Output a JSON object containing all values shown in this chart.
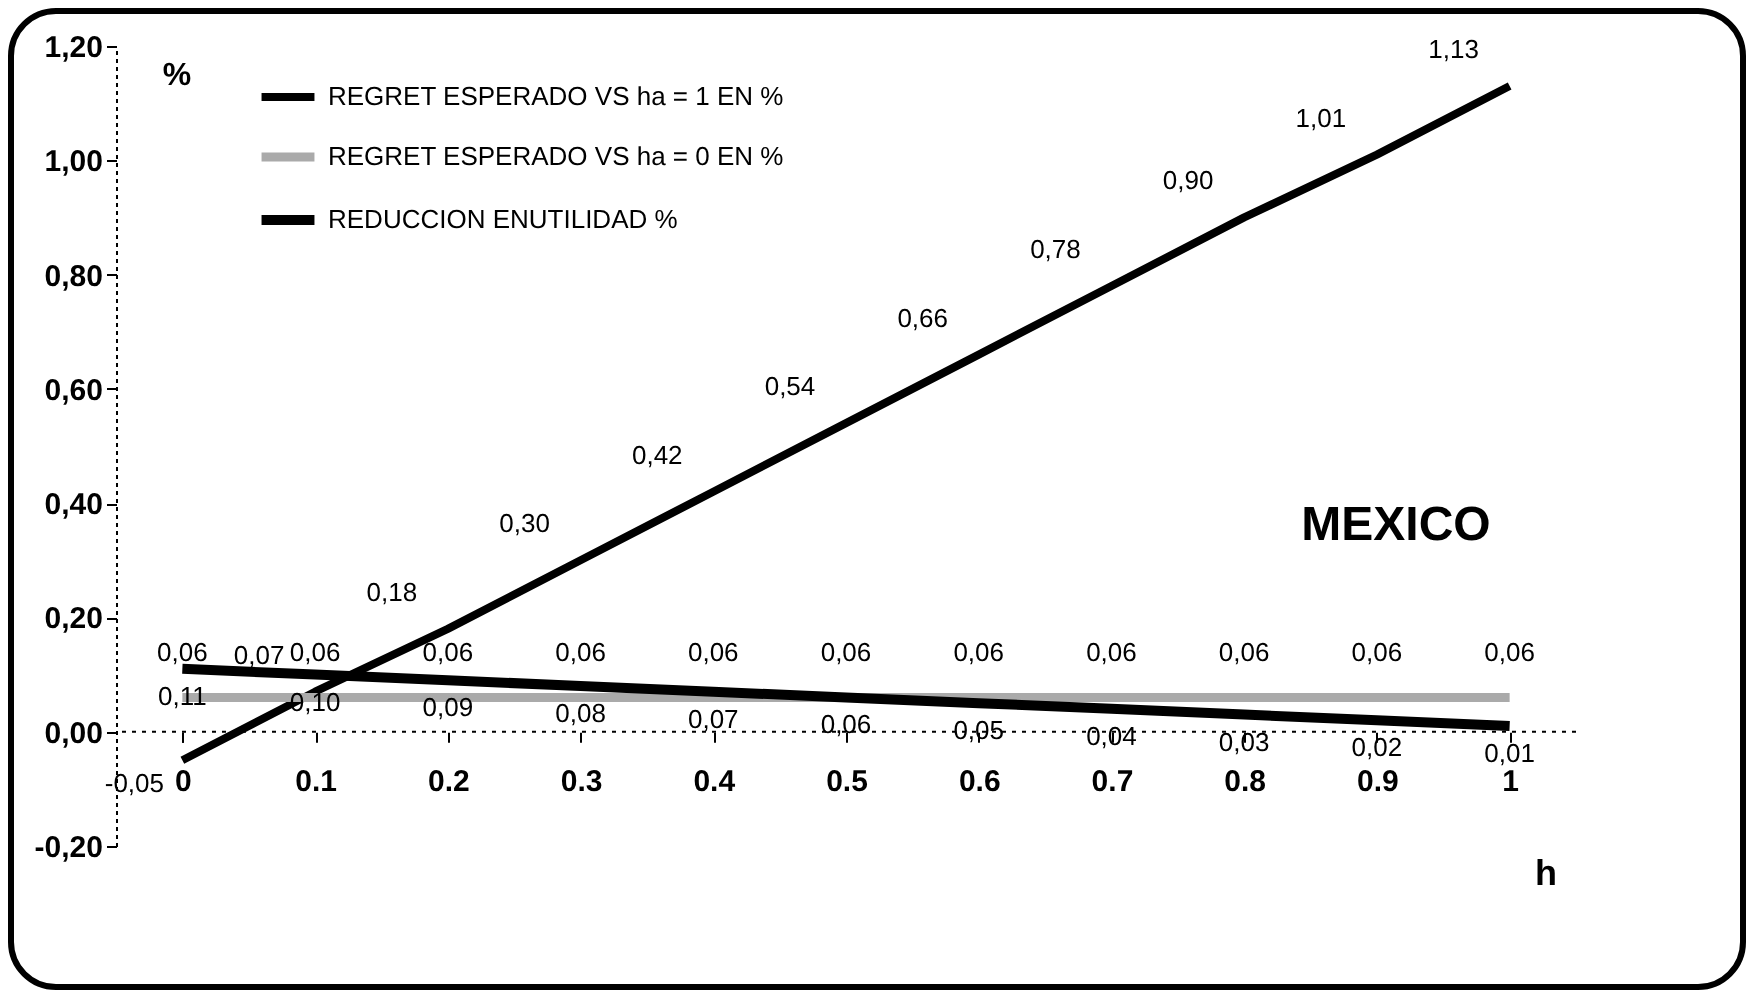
{
  "chart_data": {
    "type": "line",
    "categories": [
      "0",
      "0.1",
      "0.2",
      "0.3",
      "0.4",
      "0.5",
      "0.6",
      "0.7",
      "0.8",
      "0.9",
      "1"
    ],
    "series": [
      {
        "name": "REGRET ESPERADO VS  ha = 1 EN %",
        "color": "#000000",
        "values": [
          -0.05,
          0.07,
          0.18,
          0.3,
          0.42,
          0.54,
          0.66,
          0.78,
          0.9,
          1.01,
          1.13
        ],
        "value_labels": [
          "-0,05",
          "0,07",
          "0,18",
          "0,30",
          "0,42",
          "0,54",
          "0,66",
          "0,78",
          "0,90",
          "1,01",
          "1,13"
        ]
      },
      {
        "name": "REGRET ESPERADO VS  ha = 0 EN %",
        "color": "#aaaaaa",
        "values": [
          0.06,
          0.06,
          0.06,
          0.06,
          0.06,
          0.06,
          0.06,
          0.06,
          0.06,
          0.06,
          0.06
        ],
        "value_labels": [
          "0,06",
          "0,06",
          "0,06",
          "0,06",
          "0,06",
          "0,06",
          "0,06",
          "0,06",
          "0,06",
          "0,06",
          "0,06"
        ]
      },
      {
        "name": "REDUCCION ENUTILIDAD %",
        "color": "#000000",
        "values": [
          0.11,
          0.1,
          0.09,
          0.08,
          0.07,
          0.06,
          0.05,
          0.04,
          0.03,
          0.02,
          0.01
        ],
        "value_labels": [
          "0,11",
          "0,10",
          "0,09",
          "0,08",
          "0,07",
          "0,06",
          "0,05",
          "0,04",
          "0,03",
          "0,02",
          "0,01"
        ]
      }
    ],
    "xlabel": "h",
    "ylabel": "%",
    "ylim": [
      -0.2,
      1.2
    ],
    "yticks": [
      {
        "value": -0.2,
        "label": "-0,20"
      },
      {
        "value": 0,
        "label": "0,00"
      },
      {
        "value": 0.2,
        "label": "0,20"
      },
      {
        "value": 0.4,
        "label": "0,40"
      },
      {
        "value": 0.6,
        "label": "0,60"
      },
      {
        "value": 0.8,
        "label": "0,80"
      },
      {
        "value": 1.0,
        "label": "1,00"
      },
      {
        "value": 1.2,
        "label": "1,20"
      }
    ],
    "annotations": [
      "MEXICO"
    ],
    "ref_lines": [
      {
        "axis": "y",
        "value": 0,
        "line_style": "dotted",
        "color": "#000000"
      }
    ],
    "legend": "top left",
    "grid": false,
    "marker": "none"
  }
}
